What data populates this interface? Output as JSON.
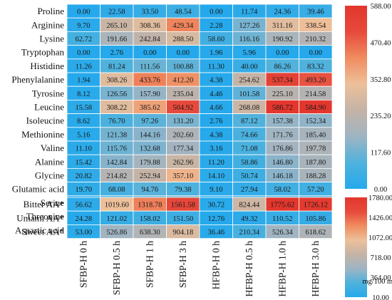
{
  "chart_data": [
    {
      "type": "heatmap",
      "rows": [
        "Proline",
        "Arginine",
        "Lysine",
        "Tryptophan",
        "Histidine",
        "Phenylalanine",
        "Tyrosine",
        "Leucine",
        "Isoleucine",
        "Methionine",
        "Valine",
        "Alanine",
        "Glycine",
        "Glutamic acid",
        "Serine",
        "Threonine",
        "Aspartic acid"
      ],
      "columns": [
        "SFBP-H 0 h",
        "SFBP-H 0.5 h",
        "SFBP-H 1 h",
        "SFBP-H 3 h",
        "HFBP-H 0 h",
        "HFBP-H 0.5 h",
        "HFBP-H 1.0 h",
        "HFBP-H 3.0 h"
      ],
      "values": [
        [
          0.0,
          22.58,
          33.5,
          48.54,
          0.0,
          11.74,
          24.36,
          39.46
        ],
        [
          9.7,
          265.1,
          308.36,
          429.34,
          2.28,
          127.26,
          311.16,
          338.54
        ],
        [
          62.72,
          191.66,
          242.84,
          288.5,
          58.6,
          116.16,
          190.92,
          210.32
        ],
        [
          0.0,
          2.76,
          0.0,
          0.0,
          1.96,
          5.96,
          0.0,
          0.0
        ],
        [
          11.26,
          81.24,
          111.56,
          100.88,
          11.3,
          40.0,
          86.26,
          83.32
        ],
        [
          1.94,
          308.26,
          433.76,
          412.2,
          4.38,
          254.62,
          537.34,
          493.2
        ],
        [
          8.12,
          126.56,
          157.9,
          235.04,
          4.46,
          101.58,
          225.1,
          214.58
        ],
        [
          15.58,
          308.22,
          385.62,
          504.92,
          4.66,
          268.08,
          586.72,
          584.9
        ],
        [
          8.62,
          76.7,
          97.26,
          131.2,
          2.76,
          87.12,
          157.38,
          152.34
        ],
        [
          5.16,
          121.38,
          144.16,
          202.6,
          4.38,
          74.66,
          171.76,
          185.4
        ],
        [
          11.1,
          115.76,
          132.68,
          177.34,
          3.16,
          71.08,
          176.86,
          197.78
        ],
        [
          15.42,
          142.84,
          179.88,
          262.96,
          11.2,
          58.86,
          146.8,
          187.8
        ],
        [
          20.82,
          214.82,
          252.94,
          357.1,
          14.1,
          50.74,
          146.18,
          188.28
        ],
        [
          19.7,
          68.08,
          94.76,
          79.38,
          9.1,
          27.94,
          58.02,
          57.2
        ],
        [
          7.14,
          73.94,
          88.96,
          124.18,
          4.08,
          39.28,
          85.46,
          87.5
        ],
        [
          9.62,
          95.26,
          116.52,
          159.94,
          7.08,
          61.46,
          147.9,
          155.04
        ],
        [
          4.58,
          52.94,
          63.26,
          72.12,
          3.66,
          21.38,
          52.5,
          48.66
        ]
      ],
      "colorbar": {
        "min": 0.0,
        "max": 588.0,
        "ticks": [
          "588.00",
          "470.40",
          "352.80",
          "235.20",
          "117.60",
          "0.00"
        ]
      }
    },
    {
      "type": "heatmap",
      "rows": [
        "Bitter AA*",
        "Umami AA*",
        "Sweet AA*"
      ],
      "columns": [
        "SFBP-H 0 h",
        "SFBP-H 0.5 h",
        "SFBP-H 1 h",
        "SFBP-H 3 h",
        "HFBP-H 0 h",
        "HFBP-H 0.5 h",
        "HFBP-H 1.0 h",
        "HFBP-H 3.0 h"
      ],
      "values": [
        [
          56.62,
          1019.6,
          1318.78,
          1561.58,
          30.72,
          824.44,
          1775.62,
          1726.12
        ],
        [
          24.28,
          121.02,
          158.02,
          151.5,
          12.76,
          49.32,
          110.52,
          105.86
        ],
        [
          53.0,
          526.86,
          638.3,
          904.18,
          36.46,
          210.34,
          526.34,
          618.62
        ]
      ],
      "colorbar": {
        "min": 10.0,
        "max": 1780.0,
        "ticks": [
          "1780.00",
          "1426.00",
          "1072.00",
          "718.00",
          "364.00",
          "10.00"
        ],
        "unit": "mg/100 mL"
      }
    }
  ],
  "colors": {
    "scale": [
      "#25a9ec",
      "#4fb2dd",
      "#9fb4c3",
      "#c4b3a6",
      "#edc09a",
      "#f08c60",
      "#e74a3c",
      "#e3362d"
    ],
    "grid": "#ffffff"
  }
}
